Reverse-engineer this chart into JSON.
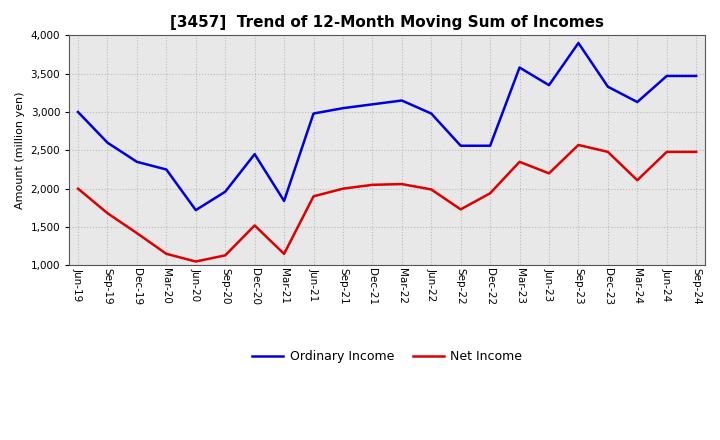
{
  "title": "[3457]  Trend of 12-Month Moving Sum of Incomes",
  "ylabel": "Amount (million yen)",
  "ylim": [
    1000,
    4000
  ],
  "yticks": [
    1000,
    1500,
    2000,
    2500,
    3000,
    3500,
    4000
  ],
  "background_color": "#ffffff",
  "plot_bg_color": "#e8e8e8",
  "grid_color": "#bbbbbb",
  "labels": [
    "Jun-19",
    "Sep-19",
    "Dec-19",
    "Mar-20",
    "Jun-20",
    "Sep-20",
    "Dec-20",
    "Mar-21",
    "Jun-21",
    "Sep-21",
    "Dec-21",
    "Mar-22",
    "Jun-22",
    "Sep-22",
    "Dec-22",
    "Mar-23",
    "Jun-23",
    "Sep-23",
    "Dec-23",
    "Mar-24",
    "Jun-24",
    "Sep-24"
  ],
  "ordinary_income": [
    3000,
    2600,
    2350,
    2250,
    1720,
    1960,
    2450,
    1840,
    2980,
    3050,
    3100,
    3150,
    2980,
    2560,
    2560,
    3580,
    3350,
    3900,
    3330,
    3130,
    3470,
    3470
  ],
  "net_income": [
    2000,
    1680,
    1420,
    1150,
    1050,
    1130,
    1520,
    1150,
    1900,
    2000,
    2050,
    2060,
    1990,
    1730,
    1940,
    2350,
    2200,
    2570,
    2480,
    2110,
    2480,
    2480
  ],
  "ordinary_color": "#0000dd",
  "net_color": "#dd0000",
  "line_width": 1.8,
  "title_fontsize": 11,
  "label_fontsize": 8,
  "tick_fontsize": 7.5,
  "legend_fontsize": 9
}
